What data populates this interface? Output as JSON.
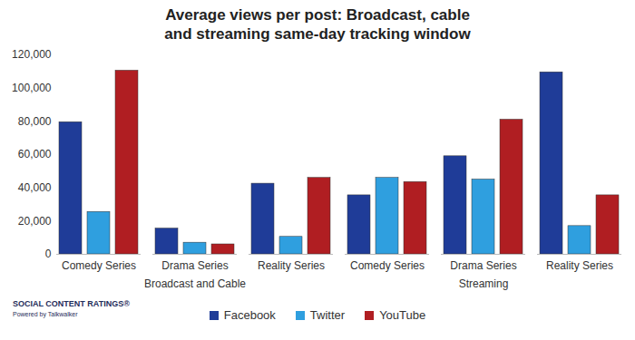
{
  "chart_data": {
    "type": "bar",
    "title": "Average views per post: Broadcast, cable\nand streaming same-day tracking window",
    "categories": [
      "Comedy Series",
      "Drama Series",
      "Reality Series",
      "Comedy Series",
      "Drama Series",
      "Reality Series"
    ],
    "category_groups": [
      "Broadcast and Cable",
      "Broadcast and Cable",
      "Broadcast and Cable",
      "Streaming",
      "Streaming",
      "Streaming"
    ],
    "series": [
      {
        "name": "Facebook",
        "color": "#1f3c98",
        "values": [
          79500,
          15500,
          42500,
          35500,
          59000,
          109500
        ]
      },
      {
        "name": "Twitter",
        "color": "#2f9fdf",
        "values": [
          25500,
          7000,
          10500,
          46000,
          45000,
          17000
        ]
      },
      {
        "name": "YouTube",
        "color": "#b01e22",
        "values": [
          110500,
          6000,
          46000,
          43500,
          81000,
          35500
        ]
      }
    ],
    "ylim": [
      0,
      120000
    ],
    "yticks": [
      0,
      {
        "value": 20000,
        "label": "20,000"
      },
      {
        "value": 40000,
        "label": "40,000"
      },
      {
        "value": 60000,
        "label": "60,000"
      },
      {
        "value": 80000,
        "label": "80,000"
      },
      {
        "value": 100000,
        "label": "100,000"
      },
      {
        "value": 120000,
        "label": "120,000"
      }
    ],
    "grid": false,
    "legend": "bottom",
    "annotations": [
      "SOCIAL CONTENT RATINGS®",
      "Powered by Talkwalker"
    ]
  }
}
